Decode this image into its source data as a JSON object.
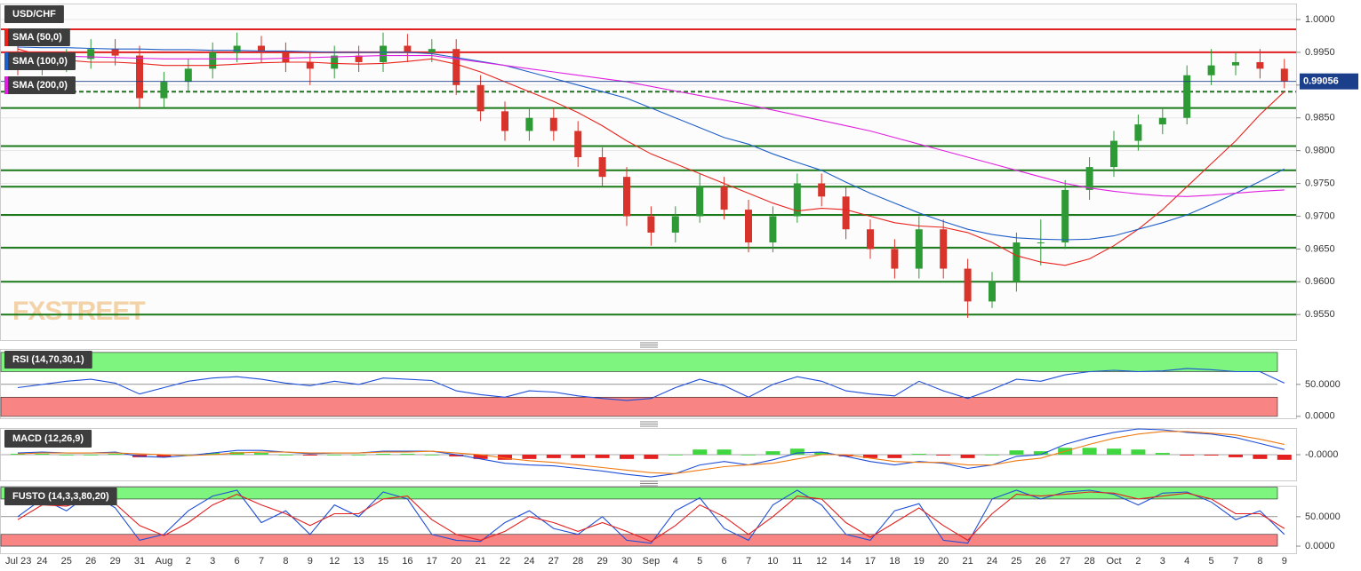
{
  "chart_data": [
    {
      "type": "candlestick",
      "title": "USD/CHF",
      "watermark": "FXSTREET",
      "categories": [
        "Jul 23",
        "24",
        "25",
        "26",
        "29",
        "31",
        "Aug",
        "2",
        "3",
        "6",
        "7",
        "8",
        "9",
        "12",
        "13",
        "15",
        "16",
        "17",
        "20",
        "21",
        "22",
        "24",
        "27",
        "28",
        "29",
        "30",
        "Sep",
        "4",
        "5",
        "6",
        "7",
        "10",
        "11",
        "12",
        "14",
        "17",
        "18",
        "19",
        "20",
        "21",
        "24",
        "25",
        "26",
        "27",
        "28",
        "Oct",
        "2",
        "3",
        "4",
        "5",
        "7",
        "8",
        "9"
      ],
      "open": [
        0.9945,
        0.993,
        0.9935,
        0.994,
        0.9955,
        0.9945,
        0.988,
        0.9905,
        0.9925,
        0.995,
        0.996,
        0.995,
        0.9935,
        0.9925,
        0.9945,
        0.9935,
        0.996,
        0.995,
        0.9955,
        0.99,
        0.986,
        0.983,
        0.985,
        0.983,
        0.979,
        0.976,
        0.97,
        0.9675,
        0.97,
        0.9745,
        0.971,
        0.966,
        0.97,
        0.975,
        0.973,
        0.968,
        0.965,
        0.962,
        0.968,
        0.962,
        0.957,
        0.96,
        0.966,
        0.966,
        0.974,
        0.9775,
        0.9815,
        0.984,
        0.985,
        0.9915,
        0.993,
        0.9935,
        0.9925
      ],
      "high": [
        0.996,
        0.995,
        0.9955,
        0.997,
        0.997,
        0.996,
        0.992,
        0.994,
        0.9965,
        0.998,
        0.9975,
        0.9965,
        0.995,
        0.996,
        0.996,
        0.998,
        0.9978,
        0.997,
        0.997,
        0.9915,
        0.9875,
        0.9865,
        0.9865,
        0.9845,
        0.9805,
        0.9775,
        0.9715,
        0.9715,
        0.9765,
        0.976,
        0.9725,
        0.9715,
        0.9765,
        0.9765,
        0.9745,
        0.9695,
        0.9665,
        0.97,
        0.9695,
        0.9635,
        0.9615,
        0.9675,
        0.9695,
        0.9755,
        0.979,
        0.983,
        0.9855,
        0.9865,
        0.993,
        0.9955,
        0.995,
        0.9955,
        0.994
      ],
      "low": [
        0.9915,
        0.9915,
        0.992,
        0.9925,
        0.993,
        0.9865,
        0.9865,
        0.989,
        0.991,
        0.9935,
        0.9935,
        0.992,
        0.99,
        0.991,
        0.992,
        0.992,
        0.9935,
        0.9935,
        0.9885,
        0.9845,
        0.9815,
        0.9815,
        0.9815,
        0.9775,
        0.9745,
        0.9685,
        0.9655,
        0.966,
        0.969,
        0.9695,
        0.9645,
        0.9645,
        0.969,
        0.9715,
        0.9665,
        0.9635,
        0.9605,
        0.9605,
        0.9605,
        0.9545,
        0.956,
        0.9585,
        0.9625,
        0.965,
        0.9725,
        0.976,
        0.98,
        0.9825,
        0.984,
        0.99,
        0.9915,
        0.991,
        0.9895
      ],
      "close": [
        0.993,
        0.9935,
        0.994,
        0.9955,
        0.9945,
        0.988,
        0.9905,
        0.9925,
        0.995,
        0.996,
        0.995,
        0.9935,
        0.9925,
        0.9945,
        0.9935,
        0.996,
        0.995,
        0.9955,
        0.99,
        0.986,
        0.983,
        0.985,
        0.983,
        0.979,
        0.976,
        0.97,
        0.9675,
        0.97,
        0.9745,
        0.971,
        0.966,
        0.97,
        0.975,
        0.973,
        0.968,
        0.965,
        0.962,
        0.968,
        0.962,
        0.957,
        0.96,
        0.966,
        0.966,
        0.974,
        0.9775,
        0.9815,
        0.984,
        0.985,
        0.9915,
        0.993,
        0.9935,
        0.9925,
        0.9906
      ],
      "up_color": "#2e9a36",
      "down_color": "#d9342b",
      "series": [
        {
          "name": "SMA (50,0)",
          "color": "#e8231c",
          "values": [
            0.9955,
            0.9945,
            0.9938,
            0.9935,
            0.9935,
            0.9933,
            0.993,
            0.993,
            0.993,
            0.9932,
            0.9934,
            0.9935,
            0.9935,
            0.9933,
            0.9932,
            0.9933,
            0.9936,
            0.994,
            0.9932,
            0.992,
            0.9905,
            0.989,
            0.9875,
            0.9858,
            0.9838,
            0.9815,
            0.9795,
            0.978,
            0.9765,
            0.975,
            0.9735,
            0.972,
            0.9708,
            0.9712,
            0.971,
            0.97,
            0.969,
            0.9685,
            0.9683,
            0.9675,
            0.966,
            0.964,
            0.963,
            0.9625,
            0.9635,
            0.9655,
            0.968,
            0.971,
            0.9745,
            0.978,
            0.9815,
            0.9855,
            0.989
          ]
        },
        {
          "name": "SMA (100,0)",
          "color": "#1f5fc8",
          "values": [
            0.9958,
            0.9957,
            0.9957,
            0.9956,
            0.9955,
            0.9955,
            0.9954,
            0.9954,
            0.9953,
            0.9953,
            0.9952,
            0.9952,
            0.9951,
            0.995,
            0.995,
            0.995,
            0.995,
            0.9948,
            0.9942,
            0.9936,
            0.993,
            0.992,
            0.991,
            0.99,
            0.989,
            0.988,
            0.9865,
            0.985,
            0.9835,
            0.982,
            0.981,
            0.9795,
            0.9782,
            0.977,
            0.9752,
            0.9735,
            0.972,
            0.9705,
            0.9692,
            0.968,
            0.9672,
            0.9667,
            0.9665,
            0.9664,
            0.9665,
            0.967,
            0.968,
            0.969,
            0.9702,
            0.9718,
            0.9735,
            0.9753,
            0.9772
          ]
        },
        {
          "name": "SMA (200,0)",
          "color": "#e020e0",
          "values": [
            0.9948,
            0.9946,
            0.9944,
            0.9943,
            0.9942,
            0.9941,
            0.994,
            0.994,
            0.994,
            0.994,
            0.994,
            0.9941,
            0.9942,
            0.9943,
            0.9944,
            0.9945,
            0.9945,
            0.9945,
            0.994,
            0.9935,
            0.993,
            0.9925,
            0.992,
            0.9915,
            0.991,
            0.9905,
            0.9898,
            0.9891,
            0.9884,
            0.9877,
            0.987,
            0.9862,
            0.9854,
            0.9846,
            0.9838,
            0.983,
            0.982,
            0.981,
            0.98,
            0.979,
            0.978,
            0.977,
            0.976,
            0.975,
            0.9743,
            0.9738,
            0.9734,
            0.9731,
            0.973,
            0.9732,
            0.9735,
            0.9738,
            0.974
          ]
        }
      ],
      "levels": [
        {
          "value": 0.9985,
          "color": "#e02020",
          "style": "solid"
        },
        {
          "value": 0.995,
          "color": "#e02020",
          "style": "solid"
        },
        {
          "value": 0.989,
          "color": "#1a7a1a",
          "style": "dashed"
        },
        {
          "value": 0.9865,
          "color": "#1a7a1a",
          "style": "solid"
        },
        {
          "value": 0.9807,
          "color": "#1a7a1a",
          "style": "solid"
        },
        {
          "value": 0.977,
          "color": "#1a7a1a",
          "style": "solid"
        },
        {
          "value": 0.9745,
          "color": "#1a7a1a",
          "style": "solid"
        },
        {
          "value": 0.9702,
          "color": "#1a7a1a",
          "style": "solid"
        },
        {
          "value": 0.9652,
          "color": "#1a7a1a",
          "style": "solid"
        },
        {
          "value": 0.96,
          "color": "#1a7a1a",
          "style": "solid"
        },
        {
          "value": 0.955,
          "color": "#1a7a1a",
          "style": "solid"
        }
      ],
      "last_price": 0.99056,
      "last_price_color": "#1c3f8c",
      "ylim": [
        0.9511,
        1.0023
      ],
      "yticks": [
        {
          "value": 1.0,
          "label": "1.0000"
        },
        {
          "value": 0.995,
          "label": "0.9950"
        },
        {
          "value": 0.99,
          "label": "0.9900"
        },
        {
          "value": 0.985,
          "label": "0.9850"
        },
        {
          "value": 0.98,
          "label": "0.9800"
        },
        {
          "value": 0.975,
          "label": "0.9750"
        },
        {
          "value": 0.97,
          "label": "0.9700"
        },
        {
          "value": 0.965,
          "label": "0.9650"
        },
        {
          "value": 0.96,
          "label": "0.9600"
        },
        {
          "value": 0.955,
          "label": "0.9550"
        }
      ],
      "grid": true
    },
    {
      "type": "line",
      "title": "RSI (14,70,30,1)",
      "bands": [
        {
          "from": 70,
          "to": 100,
          "color": "#7ef57e"
        },
        {
          "from": 0,
          "to": 30,
          "color": "#f88484"
        }
      ],
      "series": [
        {
          "color": "#1f4fd8",
          "values": [
            45,
            50,
            55,
            58,
            52,
            35,
            45,
            55,
            60,
            62,
            58,
            52,
            48,
            55,
            50,
            60,
            58,
            56,
            40,
            34,
            30,
            40,
            38,
            32,
            28,
            25,
            28,
            45,
            58,
            48,
            30,
            50,
            62,
            55,
            40,
            35,
            32,
            55,
            40,
            28,
            42,
            58,
            55,
            65,
            70,
            72,
            70,
            71,
            75,
            73,
            70,
            70,
            52
          ]
        }
      ],
      "ylim": [
        -3,
        104
      ],
      "yticks": [
        {
          "value": 50,
          "label": "50.0000"
        },
        {
          "value": 0,
          "label": "0.0000"
        }
      ]
    },
    {
      "type": "line",
      "title": "MACD (12,26,9)",
      "series": [
        {
          "kind": "histogram",
          "up_color": "#3fd63f",
          "down_color": "#e52020",
          "values": [
            0.0001,
            0.0001,
            0,
            0,
            0.0001,
            -0.0003,
            -0.0003,
            0,
            0.0002,
            0.0003,
            0.0002,
            0,
            -0.0001,
            0,
            0,
            0.0001,
            0.0001,
            0,
            -0.0002,
            -0.0005,
            -0.0006,
            -0.0005,
            -0.0004,
            -0.0004,
            -0.0004,
            -0.0005,
            -0.0005,
            0,
            0.0006,
            0.0006,
            0,
            0.0004,
            0.0007,
            0.0003,
            -0.0002,
            -0.0004,
            -0.0004,
            0.0001,
            -0.0001,
            -0.0004,
            0,
            0.0005,
            0.0004,
            0.0008,
            0.0008,
            0.0007,
            0.0006,
            0.0002,
            -0.0001,
            -0.0001,
            -0.0003,
            -0.0005,
            -0.0006
          ]
        },
        {
          "color": "#1f4fd8",
          "values": [
            0.0002,
            0.0003,
            0.0002,
            0.0002,
            0.0003,
            -0.0002,
            -0.0003,
            -0.0001,
            0.0002,
            0.0005,
            0.0005,
            0.0003,
            0.0001,
            0.0002,
            0.0002,
            0.0004,
            0.0004,
            0.0004,
            0.0,
            -0.0005,
            -0.001,
            -0.0012,
            -0.0013,
            -0.0016,
            -0.0019,
            -0.0023,
            -0.0026,
            -0.0022,
            -0.0012,
            -0.0008,
            -0.0012,
            -0.0006,
            0.0002,
            0.0003,
            -0.0002,
            -0.0008,
            -0.0012,
            -0.0008,
            -0.001,
            -0.0016,
            -0.0012,
            -0.0002,
            0.0,
            0.0012,
            0.002,
            0.0026,
            0.003,
            0.0029,
            0.0026,
            0.0024,
            0.002,
            0.0013,
            0.0006
          ]
        },
        {
          "color": "#f07a12",
          "values": [
            0.0001,
            0.0002,
            0.0002,
            0.0002,
            0.0002,
            0.0001,
            0.0,
            -0.0001,
            0.0,
            0.0002,
            0.0003,
            0.0003,
            0.0002,
            0.0002,
            0.0002,
            0.0003,
            0.0003,
            0.0004,
            0.0002,
            0.0,
            -0.0004,
            -0.0007,
            -0.0009,
            -0.0012,
            -0.0015,
            -0.0018,
            -0.0021,
            -0.0022,
            -0.0018,
            -0.0014,
            -0.0012,
            -0.001,
            -0.0005,
            0.0,
            0.0,
            -0.0004,
            -0.0008,
            -0.0009,
            -0.0009,
            -0.0012,
            -0.0012,
            -0.0007,
            -0.0004,
            0.0004,
            0.0012,
            0.0019,
            0.0024,
            0.0027,
            0.0027,
            0.0025,
            0.0023,
            0.0018,
            0.0012
          ]
        }
      ],
      "ylim": [
        -0.003,
        0.003
      ],
      "yticks": [
        {
          "value": 0,
          "label": "-0.0000"
        }
      ]
    },
    {
      "type": "line",
      "title": "FUSTO (14,3,3,80,20)",
      "bands": [
        {
          "from": 80,
          "to": 100,
          "color": "#7ef57e"
        },
        {
          "from": 0,
          "to": 20,
          "color": "#f88484"
        }
      ],
      "series": [
        {
          "color": "#1f4fd8",
          "values": [
            50,
            80,
            60,
            90,
            65,
            10,
            20,
            60,
            85,
            95,
            40,
            60,
            20,
            70,
            50,
            92,
            80,
            20,
            10,
            8,
            40,
            60,
            30,
            20,
            50,
            10,
            5,
            60,
            82,
            30,
            10,
            70,
            95,
            70,
            20,
            10,
            60,
            72,
            10,
            5,
            80,
            95,
            80,
            92,
            95,
            88,
            70,
            90,
            92,
            75,
            45,
            60,
            20
          ]
        },
        {
          "color": "#e52020",
          "values": [
            45,
            70,
            68,
            80,
            72,
            35,
            18,
            40,
            70,
            88,
            70,
            55,
            35,
            55,
            55,
            80,
            85,
            45,
            20,
            10,
            25,
            50,
            40,
            25,
            40,
            25,
            8,
            35,
            70,
            50,
            20,
            50,
            85,
            80,
            40,
            15,
            40,
            65,
            35,
            10,
            55,
            88,
            85,
            88,
            92,
            90,
            80,
            85,
            90,
            80,
            55,
            55,
            30
          ]
        }
      ],
      "ylim": [
        -12,
        101
      ],
      "yticks": [
        {
          "value": 50,
          "label": "50.0000"
        },
        {
          "value": 0,
          "label": "0.0000"
        }
      ]
    }
  ]
}
